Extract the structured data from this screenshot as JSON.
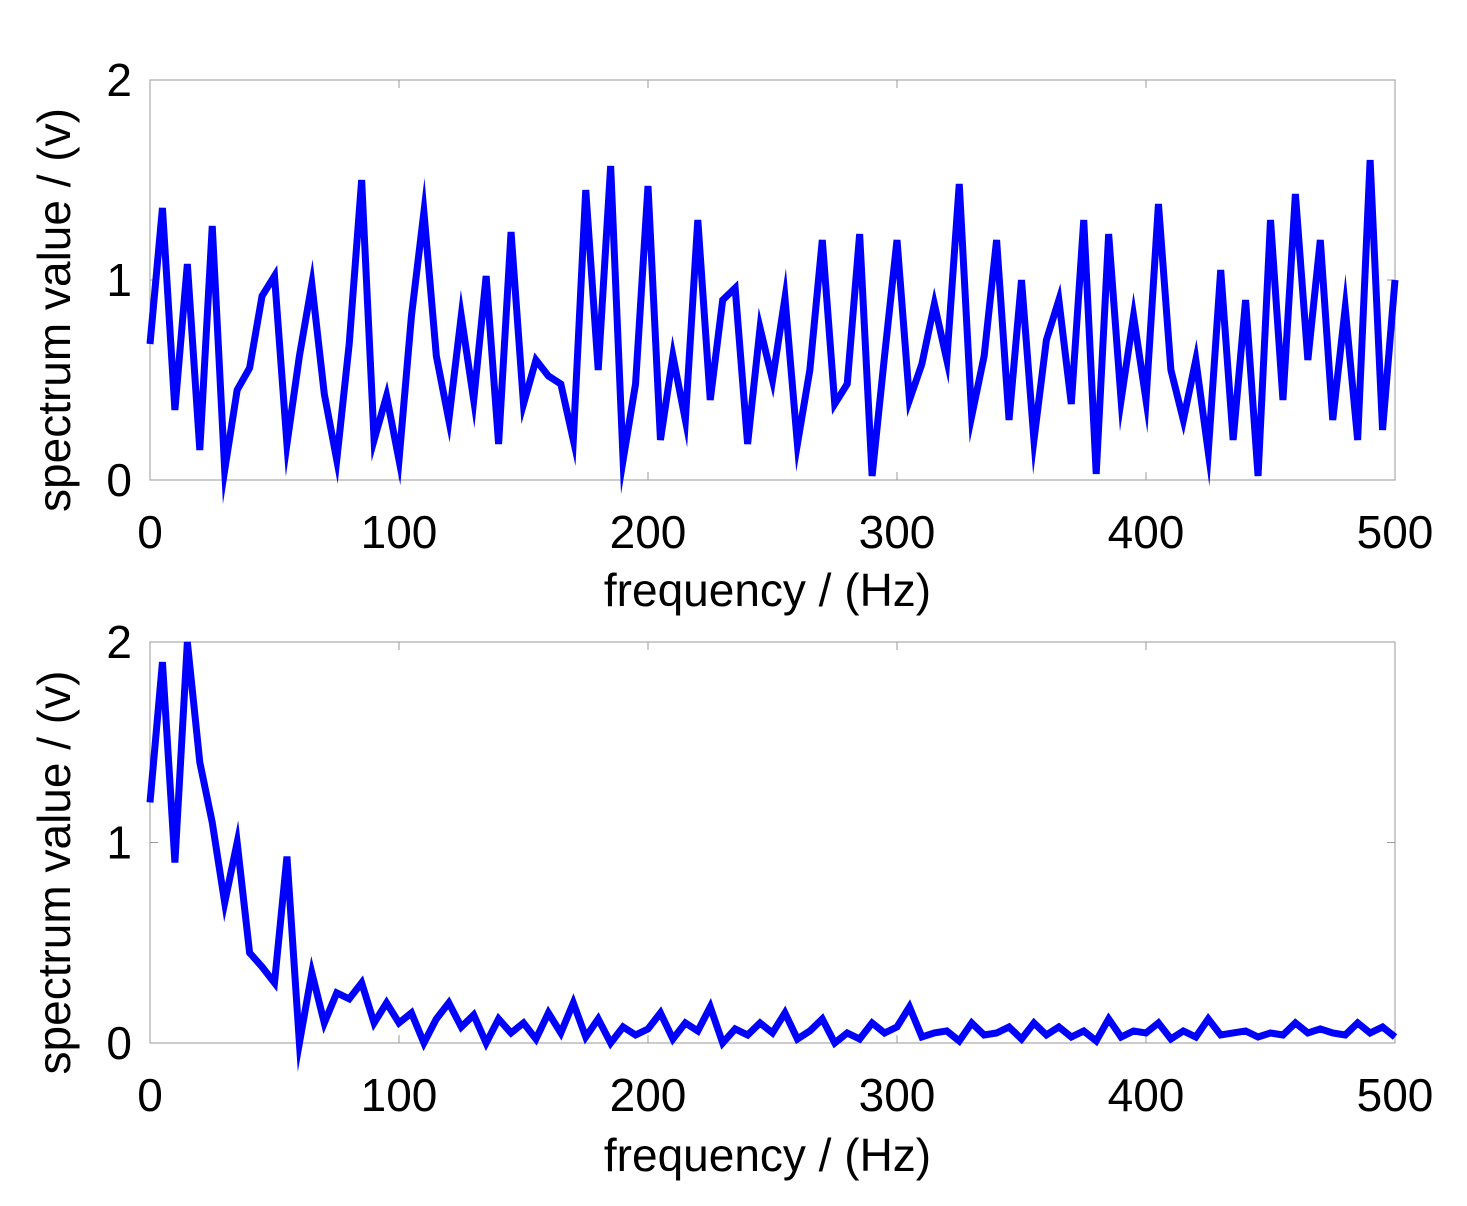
{
  "chart_data": [
    {
      "type": "line",
      "xlabel": "frequency / (Hz)",
      "ylabel": "spectrum value / (v)",
      "xlim": [
        0,
        500
      ],
      "ylim": [
        0,
        2
      ],
      "xticks": [
        0,
        100,
        200,
        300,
        400,
        500
      ],
      "yticks": [
        0,
        1,
        2
      ],
      "color": "#0000ff",
      "x": [
        0,
        5,
        10,
        15,
        20,
        25,
        30,
        35,
        40,
        45,
        50,
        55,
        60,
        65,
        70,
        75,
        80,
        85,
        90,
        95,
        100,
        105,
        110,
        115,
        120,
        125,
        130,
        135,
        140,
        145,
        150,
        155,
        160,
        165,
        170,
        175,
        180,
        185,
        190,
        195,
        200,
        205,
        210,
        215,
        220,
        225,
        230,
        235,
        240,
        245,
        250,
        255,
        260,
        265,
        270,
        275,
        280,
        285,
        290,
        295,
        300,
        305,
        310,
        315,
        320,
        325,
        330,
        335,
        340,
        345,
        350,
        355,
        360,
        365,
        370,
        375,
        380,
        385,
        390,
        395,
        400,
        405,
        410,
        415,
        420,
        425,
        430,
        435,
        440,
        445,
        450,
        455,
        460,
        465,
        470,
        475,
        480,
        485,
        490,
        495,
        500
      ],
      "values": [
        0.68,
        1.36,
        0.35,
        1.08,
        0.15,
        1.27,
        0.05,
        0.45,
        0.56,
        0.92,
        1.02,
        0.18,
        0.62,
        0.98,
        0.43,
        0.1,
        0.68,
        1.5,
        0.2,
        0.42,
        0.1,
        0.82,
        1.34,
        0.62,
        0.3,
        0.82,
        0.4,
        1.02,
        0.18,
        1.24,
        0.38,
        0.6,
        0.52,
        0.48,
        0.2,
        1.45,
        0.55,
        1.57,
        0.1,
        0.48,
        1.47,
        0.2,
        0.62,
        0.3,
        1.3,
        0.4,
        0.9,
        0.96,
        0.18,
        0.76,
        0.5,
        0.91,
        0.18,
        0.55,
        1.2,
        0.38,
        0.48,
        1.23,
        0.02,
        0.62,
        1.2,
        0.4,
        0.58,
        0.88,
        0.6,
        1.48,
        0.32,
        0.62,
        1.2,
        0.3,
        1.0,
        0.2,
        0.7,
        0.9,
        0.38,
        1.3,
        0.03,
        1.23,
        0.4,
        0.82,
        0.4,
        1.38,
        0.55,
        0.3,
        0.6,
        0.14,
        1.05,
        0.2,
        0.9,
        0.02,
        1.3,
        0.4,
        1.43,
        0.6,
        1.2,
        0.3,
        0.86,
        0.2,
        1.6,
        0.25,
        1.0
      ]
    },
    {
      "type": "line",
      "xlabel": "frequency / (Hz)",
      "ylabel": "spectrum value / (v)",
      "xlim": [
        0,
        500
      ],
      "ylim": [
        0,
        2
      ],
      "xticks": [
        0,
        100,
        200,
        300,
        400,
        500
      ],
      "yticks": [
        0,
        1,
        2
      ],
      "color": "#0000ff",
      "x": [
        0,
        5,
        10,
        15,
        20,
        25,
        30,
        35,
        40,
        45,
        50,
        55,
        60,
        65,
        70,
        75,
        80,
        85,
        90,
        95,
        100,
        105,
        110,
        115,
        120,
        125,
        130,
        135,
        140,
        145,
        150,
        155,
        160,
        165,
        170,
        175,
        180,
        185,
        190,
        195,
        200,
        205,
        210,
        215,
        220,
        225,
        230,
        235,
        240,
        245,
        250,
        255,
        260,
        265,
        270,
        275,
        280,
        285,
        290,
        295,
        300,
        305,
        310,
        315,
        320,
        325,
        330,
        335,
        340,
        345,
        350,
        355,
        360,
        365,
        370,
        375,
        380,
        385,
        390,
        395,
        400,
        405,
        410,
        415,
        420,
        425,
        430,
        435,
        440,
        445,
        450,
        455,
        460,
        465,
        470,
        475,
        480,
        485,
        490,
        495,
        500
      ],
      "values": [
        1.2,
        1.9,
        0.9,
        2.0,
        1.4,
        1.1,
        0.7,
        1.0,
        0.45,
        0.38,
        0.3,
        0.93,
        0.0,
        0.35,
        0.1,
        0.25,
        0.22,
        0.3,
        0.1,
        0.2,
        0.1,
        0.15,
        0.0,
        0.12,
        0.2,
        0.08,
        0.14,
        0.0,
        0.12,
        0.05,
        0.1,
        0.02,
        0.15,
        0.05,
        0.2,
        0.03,
        0.12,
        0.0,
        0.08,
        0.04,
        0.07,
        0.15,
        0.02,
        0.1,
        0.06,
        0.18,
        0.0,
        0.07,
        0.04,
        0.1,
        0.05,
        0.15,
        0.02,
        0.06,
        0.12,
        0.0,
        0.05,
        0.02,
        0.1,
        0.05,
        0.08,
        0.18,
        0.03,
        0.05,
        0.06,
        0.01,
        0.1,
        0.04,
        0.05,
        0.08,
        0.02,
        0.1,
        0.04,
        0.08,
        0.03,
        0.06,
        0.01,
        0.12,
        0.03,
        0.06,
        0.05,
        0.1,
        0.02,
        0.06,
        0.03,
        0.12,
        0.04,
        0.05,
        0.06,
        0.03,
        0.05,
        0.04,
        0.1,
        0.05,
        0.07,
        0.05,
        0.04,
        0.1,
        0.05,
        0.08,
        0.03
      ]
    }
  ]
}
